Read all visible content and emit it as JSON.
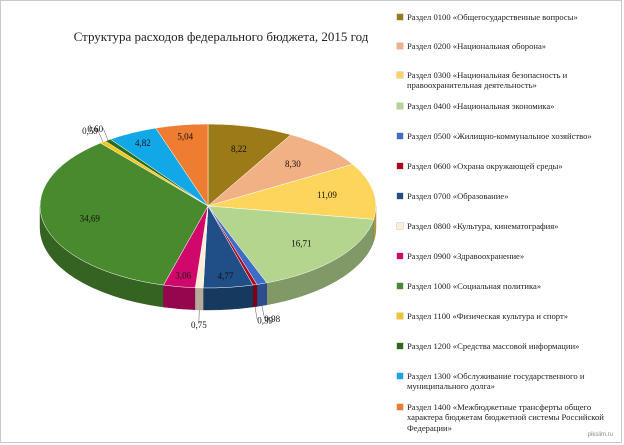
{
  "chart_data": {
    "type": "pie",
    "title": "Структура расходов федерального бюджета, 2015 год",
    "three_d": true,
    "legend_position": "right",
    "slices": [
      {
        "label": "Раздел 0100 «Общегосударственные вопросы»",
        "value": 8.22,
        "value_label": "8,22",
        "color": "#9c7a17"
      },
      {
        "label": "Раздел 0200 «Национальная оборона»",
        "value": 8.3,
        "value_label": "8,30",
        "color": "#f2b184"
      },
      {
        "label": "Раздел 0300 «Национальная безопасность и правоохранительная деятельность»",
        "value": 11.09,
        "value_label": "11,09",
        "color": "#fcd55a"
      },
      {
        "label": "Раздел 0400 «Национальная экономика»",
        "value": 16.71,
        "value_label": "16,71",
        "color": "#b3d58e"
      },
      {
        "label": "Раздел 0500 «Жилищно-коммунальное хозяйство»",
        "value": 0.98,
        "value_label": "0,98",
        "color": "#3f6cc4"
      },
      {
        "label": "Раздел 0600 «Охрана окружающей среды»",
        "value": 0.39,
        "value_label": "0,39",
        "color": "#b3001b"
      },
      {
        "label": "Раздел 0700 «Образование»",
        "value": 4.77,
        "value_label": "4,77",
        "color": "#1f4f86"
      },
      {
        "label": "Раздел 0800 «Культура, кинематография»",
        "value": 0.75,
        "value_label": "0,75",
        "color": "#fbf0d6"
      },
      {
        "label": "Раздел 0900 «Здравоохранение»",
        "value": 3.06,
        "value_label": "3,06",
        "color": "#d0086c"
      },
      {
        "label": "Раздел 1000 «Социальная политика»",
        "value": 34.69,
        "value_label": "34,69",
        "color": "#4a8a2f"
      },
      {
        "label": "Раздел 1100 «Физическая культура и спорт»",
        "value": 0.59,
        "value_label": "0,59",
        "color": "#f7c51a"
      },
      {
        "label": "Раздел 1200 «Средства массовой информации»",
        "value": 0.6,
        "value_label": "0,60",
        "color": "#2c6b16"
      },
      {
        "label": "Раздел 1300 «Обслуживание государственного и муниципального долга»",
        "value": 4.82,
        "value_label": "4,82",
        "color": "#12a8e8"
      },
      {
        "label": "Раздел 1400 «Межбюджетные трансферты общего характера бюджетам бюджетной системы Российской Федерации»",
        "value": 5.04,
        "value_label": "5,04",
        "color": "#ee7d32"
      }
    ]
  },
  "watermark": "pikslim.ru"
}
